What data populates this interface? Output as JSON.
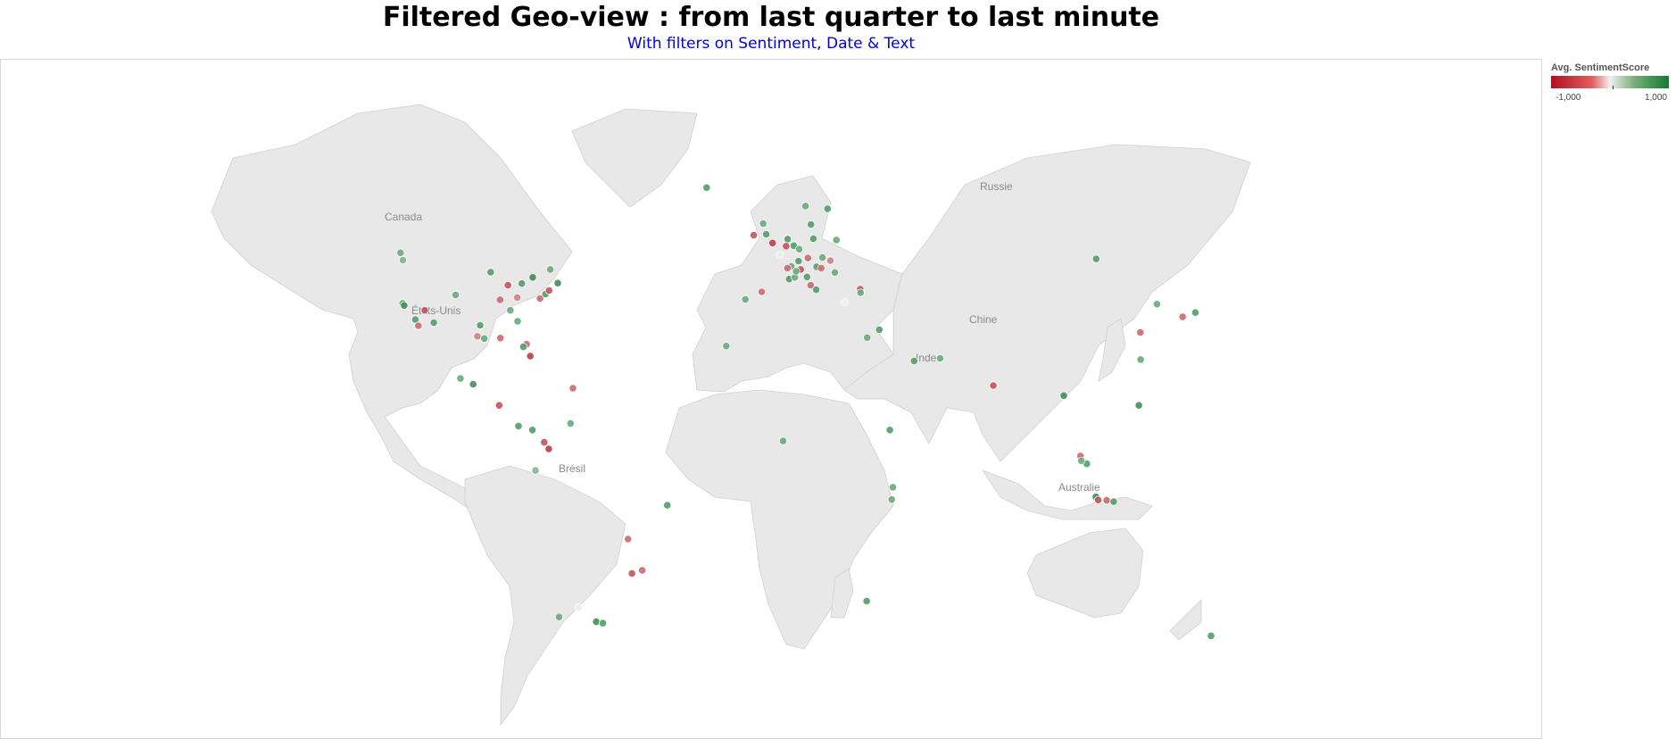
{
  "title": "Filtered Geo-view : from last quarter to last minute",
  "subtitle": "With filters on Sentiment, Date & Text",
  "legend": {
    "title": "Avg. SentimentScore",
    "min_label": "-1,000",
    "max_label": "1,000",
    "range": [
      -1000,
      1000
    ],
    "colors": {
      "negative": "#b01020",
      "neutral": "#f0f0f0",
      "positive": "#137a30"
    }
  },
  "map": {
    "labels": {
      "canada": "Canada",
      "usa": "États-Unis",
      "bresil": "Brésil",
      "russie": "Russie",
      "chine": "Chine",
      "inde": "Inde",
      "australie": "Australie"
    },
    "points": [
      {
        "lon": -122.4,
        "lat": 37.8,
        "s": 600
      },
      {
        "lon": -121.9,
        "lat": 37.3,
        "s": 800
      },
      {
        "lon": -118.2,
        "lat": 34.1,
        "s": 700
      },
      {
        "lon": -117.2,
        "lat": 32.7,
        "s": -600
      },
      {
        "lon": -115.1,
        "lat": 36.2,
        "s": -700
      },
      {
        "lon": -112.1,
        "lat": 33.4,
        "s": 700
      },
      {
        "lon": -122.3,
        "lat": 47.6,
        "s": 500
      },
      {
        "lon": -123.1,
        "lat": 49.3,
        "s": 600
      },
      {
        "lon": -104.9,
        "lat": 39.7,
        "s": 600
      },
      {
        "lon": -97.7,
        "lat": 30.3,
        "s": -500
      },
      {
        "lon": -96.8,
        "lat": 32.8,
        "s": 700
      },
      {
        "lon": -95.4,
        "lat": 29.8,
        "s": 600
      },
      {
        "lon": -90.1,
        "lat": 29.9,
        "s": -600
      },
      {
        "lon": -87.6,
        "lat": 41.9,
        "s": -700
      },
      {
        "lon": -84.4,
        "lat": 33.7,
        "s": 600
      },
      {
        "lon": -83.0,
        "lat": 42.3,
        "s": 700
      },
      {
        "lon": -80.2,
        "lat": 25.8,
        "s": -800
      },
      {
        "lon": -81.4,
        "lat": 28.5,
        "s": -600
      },
      {
        "lon": -77.0,
        "lat": 38.9,
        "s": -600
      },
      {
        "lon": -75.2,
        "lat": 39.9,
        "s": 700
      },
      {
        "lon": -74.0,
        "lat": 40.7,
        "s": -700
      },
      {
        "lon": -71.1,
        "lat": 42.4,
        "s": 800
      },
      {
        "lon": -79.4,
        "lat": 43.7,
        "s": 800
      },
      {
        "lon": -73.6,
        "lat": 45.5,
        "s": 600
      },
      {
        "lon": -93.3,
        "lat": 44.9,
        "s": 700
      },
      {
        "lon": -90.2,
        "lat": 38.6,
        "s": -600
      },
      {
        "lon": -86.8,
        "lat": 36.2,
        "s": 600
      },
      {
        "lon": -84.5,
        "lat": 39.1,
        "s": -500
      },
      {
        "lon": -82.5,
        "lat": 27.9,
        "s": 700
      },
      {
        "lon": -99.1,
        "lat": 19.4,
        "s": 800
      },
      {
        "lon": -103.3,
        "lat": 20.7,
        "s": 600
      },
      {
        "lon": -90.5,
        "lat": 14.6,
        "s": -700
      },
      {
        "lon": -84.1,
        "lat": 9.9,
        "s": 700
      },
      {
        "lon": -79.5,
        "lat": 9.0,
        "s": 700
      },
      {
        "lon": -66.1,
        "lat": 18.5,
        "s": -600
      },
      {
        "lon": -74.1,
        "lat": 4.7,
        "s": -800
      },
      {
        "lon": -75.6,
        "lat": 6.2,
        "s": -700
      },
      {
        "lon": -78.5,
        "lat": -0.2,
        "s": 500
      },
      {
        "lon": -66.9,
        "lat": 10.5,
        "s": 600
      },
      {
        "lon": -70.7,
        "lat": -33.5,
        "s": 600
      },
      {
        "lon": -58.4,
        "lat": -34.6,
        "s": 800
      },
      {
        "lon": -56.2,
        "lat": -34.9,
        "s": 700
      },
      {
        "lon": -64.2,
        "lat": -31.4,
        "s": 0
      },
      {
        "lon": -46.6,
        "lat": -23.6,
        "s": -700
      },
      {
        "lon": -43.2,
        "lat": -22.9,
        "s": -600
      },
      {
        "lon": -47.9,
        "lat": -15.8,
        "s": -600
      },
      {
        "lon": -34.9,
        "lat": -8.1,
        "s": 700
      },
      {
        "lon": -21.9,
        "lat": 64.1,
        "s": 700
      },
      {
        "lon": -9.1,
        "lat": 38.7,
        "s": 600
      },
      {
        "lon": -15.4,
        "lat": 28.1,
        "s": 600
      },
      {
        "lon": -3.7,
        "lat": 40.4,
        "s": -600
      },
      {
        "lon": -6.3,
        "lat": 53.3,
        "s": -700
      },
      {
        "lon": -0.1,
        "lat": 51.5,
        "s": -800
      },
      {
        "lon": -2.2,
        "lat": 53.5,
        "s": 700
      },
      {
        "lon": -3.2,
        "lat": 55.9,
        "s": 600
      },
      {
        "lon": 2.3,
        "lat": 48.9,
        "s": 0
      },
      {
        "lon": 4.9,
        "lat": 52.4,
        "s": 700
      },
      {
        "lon": 4.4,
        "lat": 50.8,
        "s": -700
      },
      {
        "lon": 6.9,
        "lat": 50.9,
        "s": 700
      },
      {
        "lon": 8.7,
        "lat": 50.1,
        "s": 600
      },
      {
        "lon": 13.4,
        "lat": 52.5,
        "s": 700
      },
      {
        "lon": 11.6,
        "lat": 48.1,
        "s": -600
      },
      {
        "lon": 8.5,
        "lat": 47.4,
        "s": 700
      },
      {
        "lon": 6.1,
        "lat": 46.2,
        "s": 600
      },
      {
        "lon": 4.8,
        "lat": 45.8,
        "s": -600
      },
      {
        "lon": 5.4,
        "lat": 43.3,
        "s": 700
      },
      {
        "lon": 7.3,
        "lat": 43.7,
        "s": 600
      },
      {
        "lon": 9.2,
        "lat": 45.5,
        "s": -700
      },
      {
        "lon": 7.7,
        "lat": 45.1,
        "s": 600
      },
      {
        "lon": 11.3,
        "lat": 43.8,
        "s": 700
      },
      {
        "lon": 12.5,
        "lat": 41.9,
        "s": -600
      },
      {
        "lon": 14.3,
        "lat": 40.9,
        "s": 700
      },
      {
        "lon": 16.4,
        "lat": 48.2,
        "s": 600
      },
      {
        "lon": 19.0,
        "lat": 47.5,
        "s": -500
      },
      {
        "lon": 21.0,
        "lat": 52.2,
        "s": 600
      },
      {
        "lon": 14.5,
        "lat": 46.1,
        "s": 700
      },
      {
        "lon": 16.0,
        "lat": 45.8,
        "s": -600
      },
      {
        "lon": 20.5,
        "lat": 44.8,
        "s": 600
      },
      {
        "lon": 18.1,
        "lat": 59.3,
        "s": 700
      },
      {
        "lon": 10.8,
        "lat": 59.9,
        "s": 600
      },
      {
        "lon": 12.6,
        "lat": 55.7,
        "s": 700
      },
      {
        "lon": 23.7,
        "lat": 38.0,
        "s": 0
      },
      {
        "lon": 28.9,
        "lat": 41.0,
        "s": -700
      },
      {
        "lon": 29.0,
        "lat": 40.2,
        "s": 600
      },
      {
        "lon": 35.2,
        "lat": 31.8,
        "s": 700
      },
      {
        "lon": 31.2,
        "lat": 30.0,
        "s": 600
      },
      {
        "lon": 46.7,
        "lat": 24.7,
        "s": 700
      },
      {
        "lon": 55.3,
        "lat": 25.3,
        "s": 600
      },
      {
        "lon": 72.9,
        "lat": 19.1,
        "s": -700
      },
      {
        "lon": 96.2,
        "lat": 16.8,
        "s": 800
      },
      {
        "lon": 106.9,
        "lat": 47.9,
        "s": 700
      },
      {
        "lon": 121.5,
        "lat": 31.2,
        "s": -600
      },
      {
        "lon": 121.6,
        "lat": 25.0,
        "s": 600
      },
      {
        "lon": 121.0,
        "lat": 14.6,
        "s": 800
      },
      {
        "lon": 127.0,
        "lat": 37.6,
        "s": 600
      },
      {
        "lon": 135.5,
        "lat": 34.7,
        "s": -600
      },
      {
        "lon": 139.7,
        "lat": 35.7,
        "s": 700
      },
      {
        "lon": 101.7,
        "lat": 3.1,
        "s": -600
      },
      {
        "lon": 103.8,
        "lat": 1.3,
        "s": 700
      },
      {
        "lon": 102.0,
        "lat": 2.0,
        "s": 600
      },
      {
        "lon": 106.8,
        "lat": -6.2,
        "s": 800
      },
      {
        "lon": 107.6,
        "lat": -6.9,
        "s": -700
      },
      {
        "lon": 110.4,
        "lat": -7.0,
        "s": -600
      },
      {
        "lon": 112.7,
        "lat": -7.3,
        "s": 700
      },
      {
        "lon": 39.3,
        "lat": -6.8,
        "s": 600
      },
      {
        "lon": 39.7,
        "lat": -4.0,
        "s": 600
      },
      {
        "lon": 38.7,
        "lat": 9.0,
        "s": 700
      },
      {
        "lon": 3.4,
        "lat": 6.5,
        "s": 600
      },
      {
        "lon": 31.0,
        "lat": -29.9,
        "s": 700
      },
      {
        "lon": 144.9,
        "lat": -37.8,
        "s": 700
      }
    ]
  }
}
